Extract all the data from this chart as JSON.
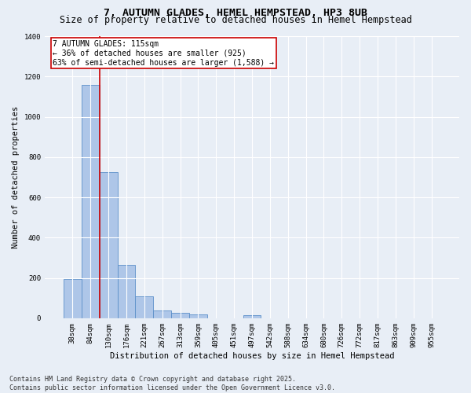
{
  "title": "7, AUTUMN GLADES, HEMEL HEMPSTEAD, HP3 8UB",
  "subtitle": "Size of property relative to detached houses in Hemel Hempstead",
  "xlabel": "Distribution of detached houses by size in Hemel Hempstead",
  "ylabel": "Number of detached properties",
  "categories": [
    "38sqm",
    "84sqm",
    "130sqm",
    "176sqm",
    "221sqm",
    "267sqm",
    "313sqm",
    "359sqm",
    "405sqm",
    "451sqm",
    "497sqm",
    "542sqm",
    "588sqm",
    "634sqm",
    "680sqm",
    "726sqm",
    "772sqm",
    "817sqm",
    "863sqm",
    "909sqm",
    "955sqm"
  ],
  "values": [
    195,
    1160,
    725,
    265,
    110,
    38,
    28,
    18,
    0,
    0,
    15,
    0,
    0,
    0,
    0,
    0,
    0,
    0,
    0,
    0,
    0
  ],
  "bar_color": "#aec6e8",
  "bar_edge_color": "#5b8fc9",
  "property_line_x": 1.5,
  "property_line_color": "#cc0000",
  "annotation_text": "7 AUTUMN GLADES: 115sqm\n← 36% of detached houses are smaller (925)\n63% of semi-detached houses are larger (1,588) →",
  "annotation_box_color": "#ffffff",
  "annotation_box_edge_color": "#cc0000",
  "ylim": [
    0,
    1400
  ],
  "yticks": [
    0,
    200,
    400,
    600,
    800,
    1000,
    1200,
    1400
  ],
  "background_color": "#e8eef6",
  "footer_text": "Contains HM Land Registry data © Crown copyright and database right 2025.\nContains public sector information licensed under the Open Government Licence v3.0.",
  "title_fontsize": 9.5,
  "subtitle_fontsize": 8.5,
  "axis_label_fontsize": 7.5,
  "tick_fontsize": 6.5,
  "annotation_fontsize": 7.0,
  "footer_fontsize": 6.0,
  "ylabel_fontsize": 7.5
}
